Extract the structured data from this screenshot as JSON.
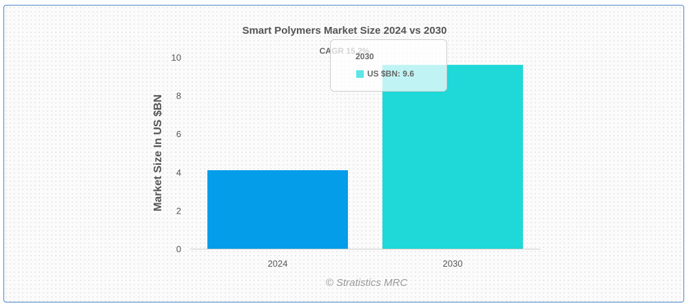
{
  "chart_data": {
    "type": "bar",
    "title": "Smart Polymers Market Size 2024 vs 2030",
    "annotation": "CAGR 15.2%",
    "ylabel": "Market Size In US $BN",
    "xlabel": "",
    "categories": [
      "2024",
      "2030"
    ],
    "values": [
      4.1,
      9.6
    ],
    "colors": [
      "#039dea",
      "#1fd8d8"
    ],
    "ylim": [
      0,
      10
    ],
    "yticks": [
      "0",
      "2",
      "4",
      "6",
      "8",
      "10"
    ],
    "grid": false,
    "tooltip": {
      "title": "2030",
      "label": "US $BN: 9.6",
      "swatch_color": "#5ee6e6"
    },
    "credit": "© Stratistics MRC"
  }
}
